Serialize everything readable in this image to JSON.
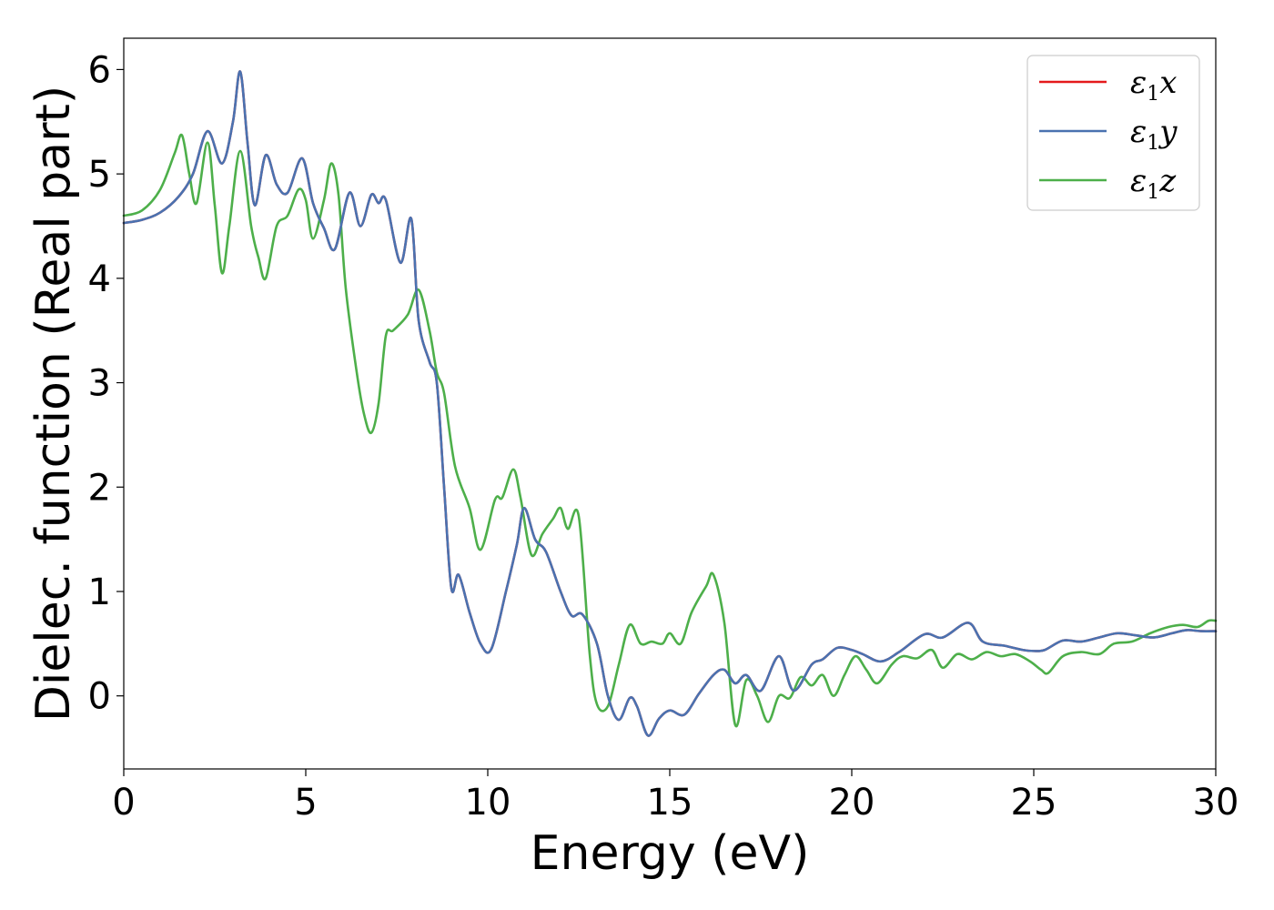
{
  "chart_data": {
    "type": "line",
    "xlabel": "Energy (eV)",
    "ylabel": "Dielec. function (Real part)",
    "xlim": [
      0,
      30
    ],
    "ylim": [
      -0.7,
      6.3
    ],
    "xticks": [
      0,
      5,
      10,
      15,
      20,
      25,
      30
    ],
    "yticks": [
      0,
      1,
      2,
      3,
      4,
      5,
      6
    ],
    "grid": false,
    "legend_position": "top-right",
    "series": [
      {
        "name": "ε1x",
        "label_base": "ε",
        "label_sub": "1",
        "label_tail": "x",
        "color": "#e41a1c",
        "points": [
          [
            0,
            4.53
          ],
          [
            0.5,
            4.56
          ],
          [
            1.0,
            4.63
          ],
          [
            1.5,
            4.78
          ],
          [
            1.9,
            5.0
          ],
          [
            2.3,
            5.41
          ],
          [
            2.7,
            5.1
          ],
          [
            3.0,
            5.5
          ],
          [
            3.2,
            5.98
          ],
          [
            3.4,
            5.3
          ],
          [
            3.6,
            4.7
          ],
          [
            3.9,
            5.18
          ],
          [
            4.2,
            4.9
          ],
          [
            4.5,
            4.82
          ],
          [
            4.9,
            5.15
          ],
          [
            5.2,
            4.72
          ],
          [
            5.5,
            4.48
          ],
          [
            5.8,
            4.28
          ],
          [
            6.2,
            4.82
          ],
          [
            6.5,
            4.5
          ],
          [
            6.8,
            4.8
          ],
          [
            7.0,
            4.72
          ],
          [
            7.2,
            4.75
          ],
          [
            7.6,
            4.15
          ],
          [
            7.9,
            4.57
          ],
          [
            8.1,
            3.6
          ],
          [
            8.4,
            3.2
          ],
          [
            8.6,
            3.0
          ],
          [
            8.8,
            2.0
          ],
          [
            9.0,
            1.03
          ],
          [
            9.2,
            1.16
          ],
          [
            9.5,
            0.8
          ],
          [
            9.8,
            0.5
          ],
          [
            10.1,
            0.45
          ],
          [
            10.5,
            1.0
          ],
          [
            10.8,
            1.45
          ],
          [
            11.0,
            1.8
          ],
          [
            11.3,
            1.5
          ],
          [
            11.6,
            1.38
          ],
          [
            12.0,
            1.0
          ],
          [
            12.3,
            0.77
          ],
          [
            12.6,
            0.78
          ],
          [
            13.0,
            0.5
          ],
          [
            13.3,
            0.0
          ],
          [
            13.6,
            -0.23
          ],
          [
            13.9,
            -0.02
          ],
          [
            14.1,
            -0.1
          ],
          [
            14.4,
            -0.38
          ],
          [
            14.7,
            -0.22
          ],
          [
            15.0,
            -0.14
          ],
          [
            15.4,
            -0.18
          ],
          [
            15.8,
            0.02
          ],
          [
            16.2,
            0.2
          ],
          [
            16.5,
            0.25
          ],
          [
            16.8,
            0.12
          ],
          [
            17.1,
            0.2
          ],
          [
            17.5,
            0.05
          ],
          [
            18.0,
            0.38
          ],
          [
            18.4,
            0.05
          ],
          [
            18.9,
            0.3
          ],
          [
            19.2,
            0.35
          ],
          [
            19.6,
            0.46
          ],
          [
            20.0,
            0.44
          ],
          [
            20.3,
            0.4
          ],
          [
            20.8,
            0.33
          ],
          [
            21.3,
            0.42
          ],
          [
            22.0,
            0.59
          ],
          [
            22.5,
            0.56
          ],
          [
            23.2,
            0.7
          ],
          [
            23.6,
            0.52
          ],
          [
            24.2,
            0.48
          ],
          [
            24.7,
            0.44
          ],
          [
            25.0,
            0.43
          ],
          [
            25.3,
            0.44
          ],
          [
            25.8,
            0.53
          ],
          [
            26.3,
            0.52
          ],
          [
            26.8,
            0.56
          ],
          [
            27.3,
            0.6
          ],
          [
            27.8,
            0.58
          ],
          [
            28.3,
            0.56
          ],
          [
            28.8,
            0.6
          ],
          [
            29.2,
            0.63
          ],
          [
            29.6,
            0.62
          ],
          [
            30.0,
            0.62
          ]
        ]
      },
      {
        "name": "ε1y",
        "label_base": "ε",
        "label_sub": "1",
        "label_tail": "y",
        "color": "#4a72b0",
        "points": [
          [
            0,
            4.53
          ],
          [
            0.5,
            4.56
          ],
          [
            1.0,
            4.63
          ],
          [
            1.5,
            4.78
          ],
          [
            1.9,
            5.0
          ],
          [
            2.3,
            5.41
          ],
          [
            2.7,
            5.1
          ],
          [
            3.0,
            5.5
          ],
          [
            3.2,
            5.98
          ],
          [
            3.4,
            5.3
          ],
          [
            3.6,
            4.7
          ],
          [
            3.9,
            5.18
          ],
          [
            4.2,
            4.9
          ],
          [
            4.5,
            4.82
          ],
          [
            4.9,
            5.15
          ],
          [
            5.2,
            4.72
          ],
          [
            5.5,
            4.48
          ],
          [
            5.8,
            4.28
          ],
          [
            6.2,
            4.82
          ],
          [
            6.5,
            4.5
          ],
          [
            6.8,
            4.8
          ],
          [
            7.0,
            4.72
          ],
          [
            7.2,
            4.75
          ],
          [
            7.6,
            4.15
          ],
          [
            7.9,
            4.57
          ],
          [
            8.1,
            3.6
          ],
          [
            8.4,
            3.2
          ],
          [
            8.6,
            3.0
          ],
          [
            8.8,
            2.0
          ],
          [
            9.0,
            1.03
          ],
          [
            9.2,
            1.16
          ],
          [
            9.5,
            0.8
          ],
          [
            9.8,
            0.5
          ],
          [
            10.1,
            0.45
          ],
          [
            10.5,
            1.0
          ],
          [
            10.8,
            1.45
          ],
          [
            11.0,
            1.8
          ],
          [
            11.3,
            1.5
          ],
          [
            11.6,
            1.38
          ],
          [
            12.0,
            1.0
          ],
          [
            12.3,
            0.77
          ],
          [
            12.6,
            0.78
          ],
          [
            13.0,
            0.5
          ],
          [
            13.3,
            0.0
          ],
          [
            13.6,
            -0.23
          ],
          [
            13.9,
            -0.02
          ],
          [
            14.1,
            -0.1
          ],
          [
            14.4,
            -0.38
          ],
          [
            14.7,
            -0.22
          ],
          [
            15.0,
            -0.14
          ],
          [
            15.4,
            -0.18
          ],
          [
            15.8,
            0.02
          ],
          [
            16.2,
            0.2
          ],
          [
            16.5,
            0.25
          ],
          [
            16.8,
            0.12
          ],
          [
            17.1,
            0.2
          ],
          [
            17.5,
            0.05
          ],
          [
            18.0,
            0.38
          ],
          [
            18.4,
            0.05
          ],
          [
            18.9,
            0.3
          ],
          [
            19.2,
            0.35
          ],
          [
            19.6,
            0.46
          ],
          [
            20.0,
            0.44
          ],
          [
            20.3,
            0.4
          ],
          [
            20.8,
            0.33
          ],
          [
            21.3,
            0.42
          ],
          [
            22.0,
            0.59
          ],
          [
            22.5,
            0.56
          ],
          [
            23.2,
            0.7
          ],
          [
            23.6,
            0.52
          ],
          [
            24.2,
            0.48
          ],
          [
            24.7,
            0.44
          ],
          [
            25.0,
            0.43
          ],
          [
            25.3,
            0.44
          ],
          [
            25.8,
            0.53
          ],
          [
            26.3,
            0.52
          ],
          [
            26.8,
            0.56
          ],
          [
            27.3,
            0.6
          ],
          [
            27.8,
            0.58
          ],
          [
            28.3,
            0.56
          ],
          [
            28.8,
            0.6
          ],
          [
            29.2,
            0.63
          ],
          [
            29.6,
            0.62
          ],
          [
            30.0,
            0.62
          ]
        ]
      },
      {
        "name": "ε1z",
        "label_base": "ε",
        "label_sub": "1",
        "label_tail": "z",
        "color": "#4daf4a",
        "points": [
          [
            0,
            4.6
          ],
          [
            0.5,
            4.65
          ],
          [
            1.0,
            4.85
          ],
          [
            1.4,
            5.2
          ],
          [
            1.6,
            5.37
          ],
          [
            1.8,
            5.0
          ],
          [
            2.0,
            4.72
          ],
          [
            2.3,
            5.3
          ],
          [
            2.5,
            4.7
          ],
          [
            2.7,
            4.05
          ],
          [
            2.9,
            4.5
          ],
          [
            3.2,
            5.22
          ],
          [
            3.5,
            4.5
          ],
          [
            3.7,
            4.2
          ],
          [
            3.9,
            4.0
          ],
          [
            4.2,
            4.5
          ],
          [
            4.5,
            4.6
          ],
          [
            4.8,
            4.85
          ],
          [
            5.0,
            4.75
          ],
          [
            5.2,
            4.38
          ],
          [
            5.5,
            4.75
          ],
          [
            5.7,
            5.1
          ],
          [
            5.9,
            4.8
          ],
          [
            6.1,
            3.9
          ],
          [
            6.4,
            3.1
          ],
          [
            6.6,
            2.7
          ],
          [
            6.8,
            2.52
          ],
          [
            7.0,
            2.8
          ],
          [
            7.2,
            3.45
          ],
          [
            7.4,
            3.5
          ],
          [
            7.8,
            3.65
          ],
          [
            8.1,
            3.89
          ],
          [
            8.4,
            3.5
          ],
          [
            8.6,
            3.1
          ],
          [
            8.8,
            2.9
          ],
          [
            9.1,
            2.2
          ],
          [
            9.5,
            1.8
          ],
          [
            9.8,
            1.4
          ],
          [
            10.2,
            1.88
          ],
          [
            10.4,
            1.9
          ],
          [
            10.7,
            2.17
          ],
          [
            10.9,
            1.9
          ],
          [
            11.2,
            1.35
          ],
          [
            11.5,
            1.55
          ],
          [
            11.8,
            1.7
          ],
          [
            12.0,
            1.8
          ],
          [
            12.2,
            1.6
          ],
          [
            12.5,
            1.72
          ],
          [
            12.8,
            0.4
          ],
          [
            13.0,
            -0.08
          ],
          [
            13.3,
            -0.1
          ],
          [
            13.6,
            0.3
          ],
          [
            13.9,
            0.68
          ],
          [
            14.2,
            0.5
          ],
          [
            14.5,
            0.52
          ],
          [
            14.8,
            0.5
          ],
          [
            15.0,
            0.6
          ],
          [
            15.3,
            0.5
          ],
          [
            15.6,
            0.8
          ],
          [
            16.0,
            1.05
          ],
          [
            16.2,
            1.16
          ],
          [
            16.5,
            0.7
          ],
          [
            16.8,
            -0.28
          ],
          [
            17.1,
            0.15
          ],
          [
            17.4,
            0.0
          ],
          [
            17.7,
            -0.25
          ],
          [
            18.0,
            0.0
          ],
          [
            18.3,
            -0.02
          ],
          [
            18.6,
            0.18
          ],
          [
            18.9,
            0.1
          ],
          [
            19.2,
            0.2
          ],
          [
            19.5,
            0.0
          ],
          [
            19.8,
            0.2
          ],
          [
            20.1,
            0.38
          ],
          [
            20.4,
            0.25
          ],
          [
            20.7,
            0.12
          ],
          [
            21.1,
            0.3
          ],
          [
            21.4,
            0.38
          ],
          [
            21.8,
            0.36
          ],
          [
            22.2,
            0.44
          ],
          [
            22.5,
            0.27
          ],
          [
            22.9,
            0.4
          ],
          [
            23.3,
            0.35
          ],
          [
            23.7,
            0.42
          ],
          [
            24.1,
            0.38
          ],
          [
            24.5,
            0.4
          ],
          [
            24.9,
            0.33
          ],
          [
            25.2,
            0.25
          ],
          [
            25.4,
            0.22
          ],
          [
            25.8,
            0.38
          ],
          [
            26.3,
            0.42
          ],
          [
            26.8,
            0.4
          ],
          [
            27.2,
            0.5
          ],
          [
            27.7,
            0.52
          ],
          [
            28.2,
            0.6
          ],
          [
            28.7,
            0.66
          ],
          [
            29.1,
            0.68
          ],
          [
            29.5,
            0.66
          ],
          [
            29.8,
            0.72
          ],
          [
            30.0,
            0.72
          ]
        ]
      }
    ]
  }
}
